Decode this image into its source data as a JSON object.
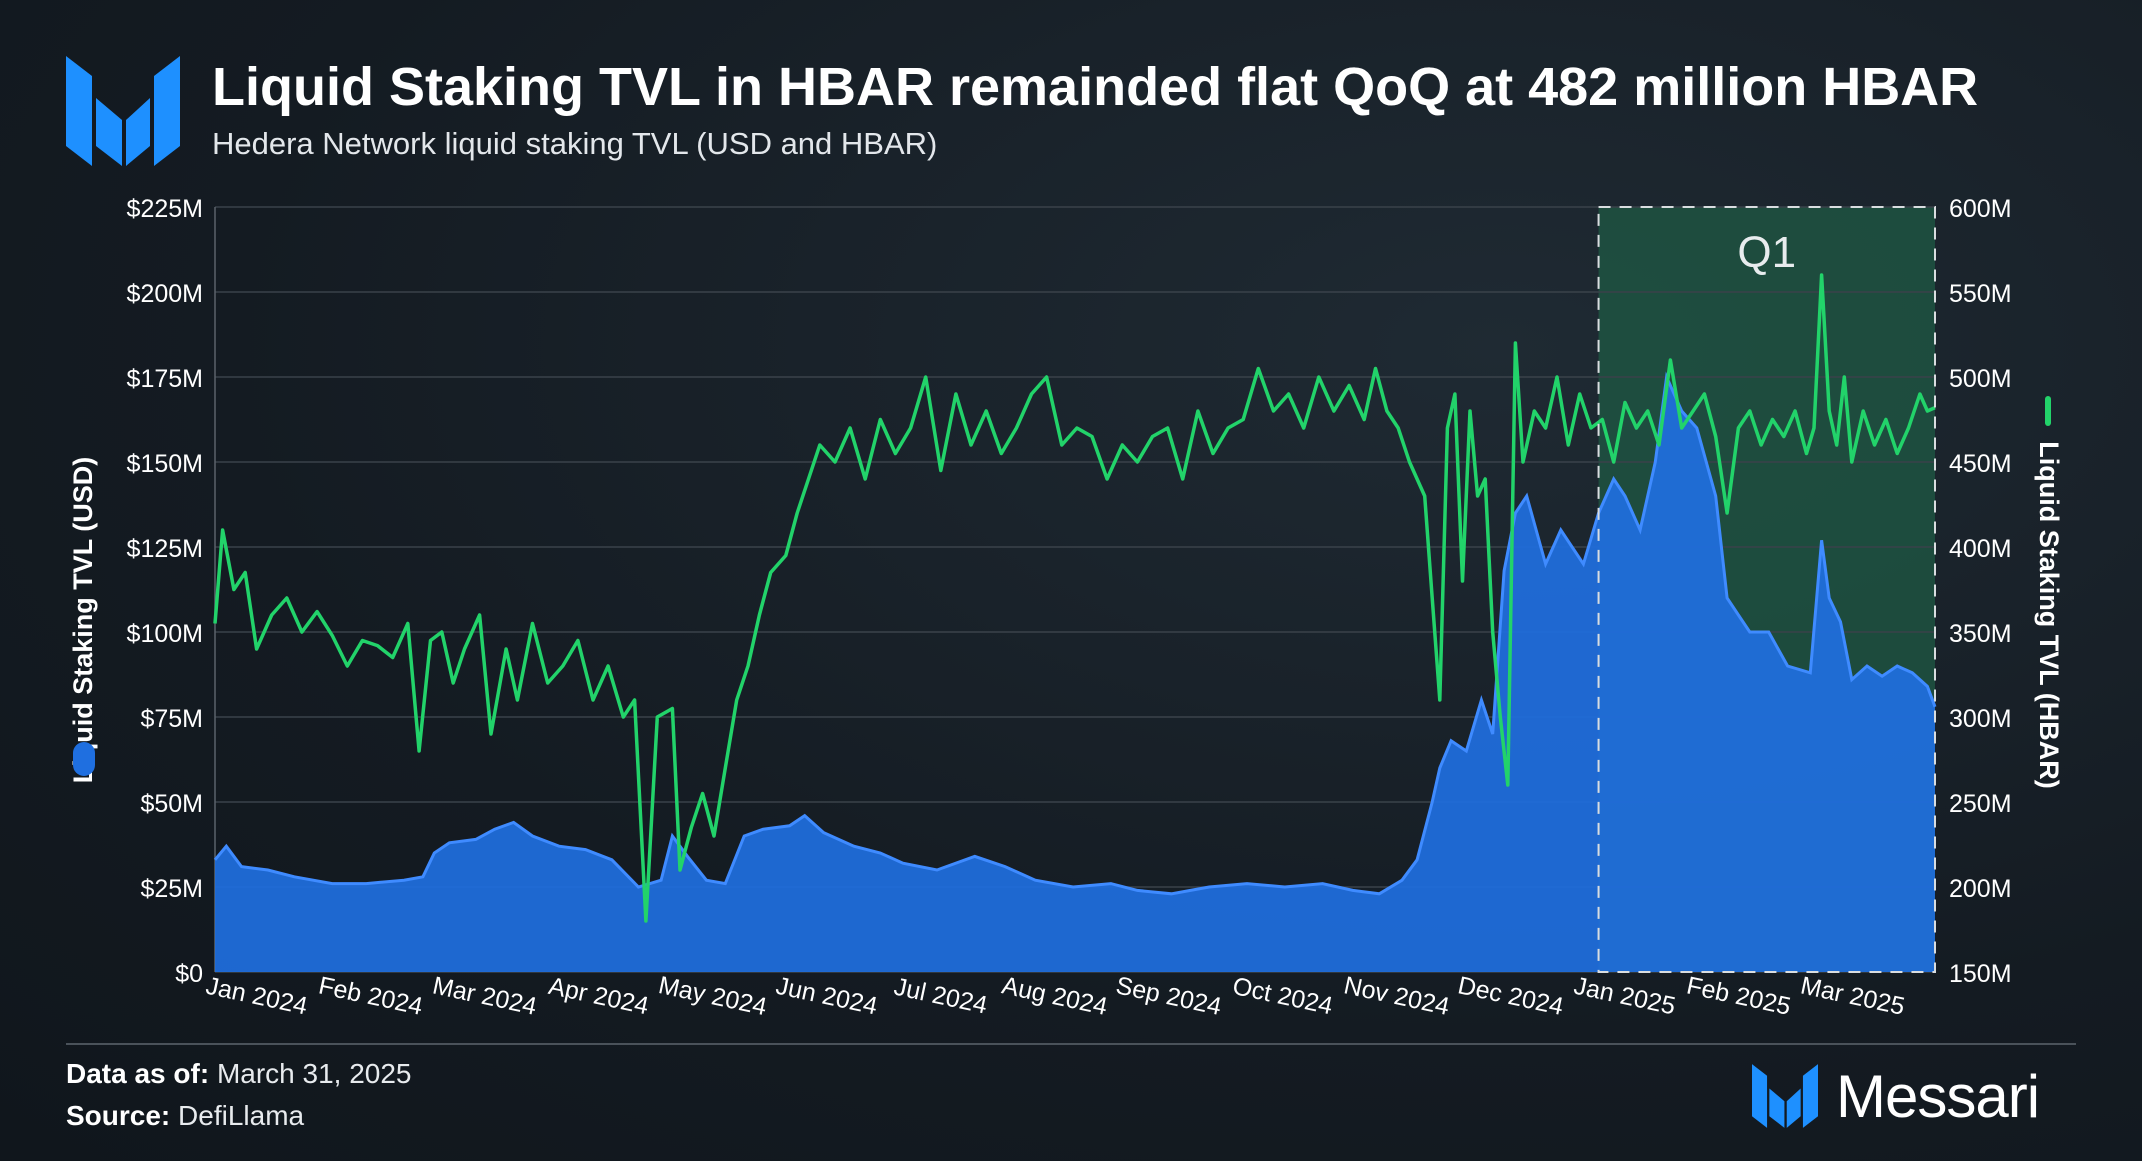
{
  "header": {
    "title": "Liquid Staking TVL in HBAR remainded flat QoQ at 482 million HBAR",
    "subtitle": "Hedera Network liquid staking TVL (USD and HBAR)"
  },
  "footer": {
    "data_as_of_label": "Data as of:",
    "data_as_of_value": "March 31, 2025",
    "source_label": "Source:",
    "source_value": "DefiLlama",
    "brand": "Messari"
  },
  "colors": {
    "usd_area": "#1f6fe0",
    "hbar_line": "#22d36a",
    "highlight_fill": "#1f5a44",
    "grid": "#3a424a",
    "brand_blue": "#1e90ff"
  },
  "chart_data": {
    "type": "area+line",
    "x_start": "2024-01-01",
    "x_end": "2025-03-31",
    "x_tick_labels": [
      "Jan 2024",
      "Feb 2024",
      "Mar 2024",
      "Apr 2024",
      "May 2024",
      "Jun 2024",
      "Jul 2024",
      "Aug 2024",
      "Sep 2024",
      "Oct 2024",
      "Nov 2024",
      "Dec 2024",
      "Jan 2025",
      "Feb 2025",
      "Mar 2025"
    ],
    "left_axis": {
      "label": "Liquid Staking TVL (USD)",
      "range": [
        0,
        225
      ],
      "unit": "M USD",
      "tick_labels": [
        "$0",
        "$25M",
        "$50M",
        "$75M",
        "$100M",
        "$125M",
        "$150M",
        "$175M",
        "$200M",
        "$225M"
      ]
    },
    "right_axis": {
      "label": "Liquid Staking TVL (HBAR)",
      "range": [
        150,
        600
      ],
      "unit": "M HBAR",
      "tick_labels": [
        "150M",
        "200M",
        "250M",
        "300M",
        "350M",
        "400M",
        "450M",
        "500M",
        "550M",
        "600M"
      ]
    },
    "highlight": {
      "label": "Q1",
      "from": "2025-01-01",
      "to": "2025-03-31"
    },
    "series": [
      {
        "name": "Liquid Staking TVL (USD)",
        "axis": "left",
        "type": "area",
        "points": [
          [
            "2024-01-01",
            33
          ],
          [
            "2024-01-04",
            37
          ],
          [
            "2024-01-08",
            31
          ],
          [
            "2024-01-15",
            30
          ],
          [
            "2024-01-22",
            28
          ],
          [
            "2024-02-01",
            26
          ],
          [
            "2024-02-10",
            26
          ],
          [
            "2024-02-20",
            27
          ],
          [
            "2024-02-25",
            28
          ],
          [
            "2024-02-28",
            35
          ],
          [
            "2024-03-03",
            38
          ],
          [
            "2024-03-10",
            39
          ],
          [
            "2024-03-15",
            42
          ],
          [
            "2024-03-20",
            44
          ],
          [
            "2024-03-25",
            40
          ],
          [
            "2024-04-01",
            37
          ],
          [
            "2024-04-08",
            36
          ],
          [
            "2024-04-15",
            33
          ],
          [
            "2024-04-22",
            25
          ],
          [
            "2024-04-28",
            27
          ],
          [
            "2024-05-01",
            40
          ],
          [
            "2024-05-05",
            34
          ],
          [
            "2024-05-10",
            27
          ],
          [
            "2024-05-15",
            26
          ],
          [
            "2024-05-20",
            40
          ],
          [
            "2024-05-25",
            42
          ],
          [
            "2024-06-01",
            43
          ],
          [
            "2024-06-05",
            46
          ],
          [
            "2024-06-10",
            41
          ],
          [
            "2024-06-18",
            37
          ],
          [
            "2024-06-25",
            35
          ],
          [
            "2024-07-01",
            32
          ],
          [
            "2024-07-10",
            30
          ],
          [
            "2024-07-20",
            34
          ],
          [
            "2024-07-28",
            31
          ],
          [
            "2024-08-05",
            27
          ],
          [
            "2024-08-15",
            25
          ],
          [
            "2024-08-25",
            26
          ],
          [
            "2024-09-01",
            24
          ],
          [
            "2024-09-10",
            23
          ],
          [
            "2024-09-20",
            25
          ],
          [
            "2024-09-30",
            26
          ],
          [
            "2024-10-10",
            25
          ],
          [
            "2024-10-20",
            26
          ],
          [
            "2024-10-28",
            24
          ],
          [
            "2024-11-04",
            23
          ],
          [
            "2024-11-10",
            27
          ],
          [
            "2024-11-14",
            33
          ],
          [
            "2024-11-18",
            50
          ],
          [
            "2024-11-20",
            60
          ],
          [
            "2024-11-23",
            68
          ],
          [
            "2024-11-27",
            65
          ],
          [
            "2024-12-01",
            80
          ],
          [
            "2024-12-04",
            70
          ],
          [
            "2024-12-07",
            118
          ],
          [
            "2024-12-10",
            135
          ],
          [
            "2024-12-13",
            140
          ],
          [
            "2024-12-18",
            120
          ],
          [
            "2024-12-22",
            130
          ],
          [
            "2024-12-28",
            120
          ],
          [
            "2025-01-01",
            135
          ],
          [
            "2025-01-05",
            145
          ],
          [
            "2025-01-08",
            140
          ],
          [
            "2025-01-12",
            130
          ],
          [
            "2025-01-16",
            150
          ],
          [
            "2025-01-19",
            175
          ],
          [
            "2025-01-23",
            165
          ],
          [
            "2025-01-27",
            160
          ],
          [
            "2025-02-01",
            140
          ],
          [
            "2025-02-04",
            110
          ],
          [
            "2025-02-07",
            105
          ],
          [
            "2025-02-10",
            100
          ],
          [
            "2025-02-15",
            100
          ],
          [
            "2025-02-20",
            90
          ],
          [
            "2025-02-26",
            88
          ],
          [
            "2025-03-01",
            127
          ],
          [
            "2025-03-03",
            110
          ],
          [
            "2025-03-06",
            103
          ],
          [
            "2025-03-09",
            86
          ],
          [
            "2025-03-13",
            90
          ],
          [
            "2025-03-17",
            87
          ],
          [
            "2025-03-21",
            90
          ],
          [
            "2025-03-25",
            88
          ],
          [
            "2025-03-29",
            84
          ],
          [
            "2025-03-31",
            78
          ]
        ]
      },
      {
        "name": "Liquid Staking TVL (HBAR)",
        "axis": "right",
        "type": "line",
        "points": [
          [
            "2024-01-01",
            355
          ],
          [
            "2024-01-03",
            410
          ],
          [
            "2024-01-06",
            375
          ],
          [
            "2024-01-09",
            385
          ],
          [
            "2024-01-12",
            340
          ],
          [
            "2024-01-16",
            360
          ],
          [
            "2024-01-20",
            370
          ],
          [
            "2024-01-24",
            350
          ],
          [
            "2024-01-28",
            362
          ],
          [
            "2024-02-01",
            348
          ],
          [
            "2024-02-05",
            330
          ],
          [
            "2024-02-09",
            345
          ],
          [
            "2024-02-13",
            342
          ],
          [
            "2024-02-17",
            335
          ],
          [
            "2024-02-21",
            355
          ],
          [
            "2024-02-24",
            280
          ],
          [
            "2024-02-27",
            345
          ],
          [
            "2024-03-01",
            350
          ],
          [
            "2024-03-04",
            320
          ],
          [
            "2024-03-07",
            340
          ],
          [
            "2024-03-11",
            360
          ],
          [
            "2024-03-14",
            290
          ],
          [
            "2024-03-18",
            340
          ],
          [
            "2024-03-21",
            310
          ],
          [
            "2024-03-25",
            355
          ],
          [
            "2024-03-29",
            320
          ],
          [
            "2024-04-02",
            330
          ],
          [
            "2024-04-06",
            345
          ],
          [
            "2024-04-10",
            310
          ],
          [
            "2024-04-14",
            330
          ],
          [
            "2024-04-18",
            300
          ],
          [
            "2024-04-21",
            310
          ],
          [
            "2024-04-24",
            180
          ],
          [
            "2024-04-27",
            300
          ],
          [
            "2024-05-01",
            305
          ],
          [
            "2024-05-03",
            210
          ],
          [
            "2024-05-06",
            235
          ],
          [
            "2024-05-09",
            255
          ],
          [
            "2024-05-12",
            230
          ],
          [
            "2024-05-15",
            270
          ],
          [
            "2024-05-18",
            310
          ],
          [
            "2024-05-21",
            330
          ],
          [
            "2024-05-24",
            360
          ],
          [
            "2024-05-27",
            385
          ],
          [
            "2024-05-31",
            395
          ],
          [
            "2024-06-03",
            420
          ],
          [
            "2024-06-06",
            440
          ],
          [
            "2024-06-09",
            460
          ],
          [
            "2024-06-13",
            450
          ],
          [
            "2024-06-17",
            470
          ],
          [
            "2024-06-21",
            440
          ],
          [
            "2024-06-25",
            475
          ],
          [
            "2024-06-29",
            455
          ],
          [
            "2024-07-03",
            470
          ],
          [
            "2024-07-07",
            500
          ],
          [
            "2024-07-11",
            445
          ],
          [
            "2024-07-15",
            490
          ],
          [
            "2024-07-19",
            460
          ],
          [
            "2024-07-23",
            480
          ],
          [
            "2024-07-27",
            455
          ],
          [
            "2024-07-31",
            470
          ],
          [
            "2024-08-04",
            490
          ],
          [
            "2024-08-08",
            500
          ],
          [
            "2024-08-12",
            460
          ],
          [
            "2024-08-16",
            470
          ],
          [
            "2024-08-20",
            465
          ],
          [
            "2024-08-24",
            440
          ],
          [
            "2024-08-28",
            460
          ],
          [
            "2024-09-01",
            450
          ],
          [
            "2024-09-05",
            465
          ],
          [
            "2024-09-09",
            470
          ],
          [
            "2024-09-13",
            440
          ],
          [
            "2024-09-17",
            480
          ],
          [
            "2024-09-21",
            455
          ],
          [
            "2024-09-25",
            470
          ],
          [
            "2024-09-29",
            475
          ],
          [
            "2024-10-03",
            505
          ],
          [
            "2024-10-07",
            480
          ],
          [
            "2024-10-11",
            490
          ],
          [
            "2024-10-15",
            470
          ],
          [
            "2024-10-19",
            500
          ],
          [
            "2024-10-23",
            480
          ],
          [
            "2024-10-27",
            495
          ],
          [
            "2024-10-31",
            475
          ],
          [
            "2024-11-03",
            505
          ],
          [
            "2024-11-06",
            480
          ],
          [
            "2024-11-09",
            470
          ],
          [
            "2024-11-12",
            450
          ],
          [
            "2024-11-14",
            440
          ],
          [
            "2024-11-16",
            430
          ],
          [
            "2024-11-18",
            370
          ],
          [
            "2024-11-20",
            310
          ],
          [
            "2024-11-22",
            470
          ],
          [
            "2024-11-24",
            490
          ],
          [
            "2024-11-26",
            380
          ],
          [
            "2024-11-28",
            480
          ],
          [
            "2024-11-30",
            430
          ],
          [
            "2024-12-02",
            440
          ],
          [
            "2024-12-04",
            350
          ],
          [
            "2024-12-06",
            300
          ],
          [
            "2024-12-08",
            260
          ],
          [
            "2024-12-10",
            520
          ],
          [
            "2024-12-12",
            450
          ],
          [
            "2024-12-15",
            480
          ],
          [
            "2024-12-18",
            470
          ],
          [
            "2024-12-21",
            500
          ],
          [
            "2024-12-24",
            460
          ],
          [
            "2024-12-27",
            490
          ],
          [
            "2024-12-30",
            470
          ],
          [
            "2025-01-02",
            475
          ],
          [
            "2025-01-05",
            450
          ],
          [
            "2025-01-08",
            485
          ],
          [
            "2025-01-11",
            470
          ],
          [
            "2025-01-14",
            480
          ],
          [
            "2025-01-17",
            460
          ],
          [
            "2025-01-20",
            510
          ],
          [
            "2025-01-23",
            470
          ],
          [
            "2025-01-26",
            480
          ],
          [
            "2025-01-29",
            490
          ],
          [
            "2025-02-01",
            465
          ],
          [
            "2025-02-04",
            420
          ],
          [
            "2025-02-07",
            470
          ],
          [
            "2025-02-10",
            480
          ],
          [
            "2025-02-13",
            460
          ],
          [
            "2025-02-16",
            475
          ],
          [
            "2025-02-19",
            465
          ],
          [
            "2025-02-22",
            480
          ],
          [
            "2025-02-25",
            455
          ],
          [
            "2025-02-27",
            470
          ],
          [
            "2025-03-01",
            560
          ],
          [
            "2025-03-03",
            480
          ],
          [
            "2025-03-05",
            460
          ],
          [
            "2025-03-07",
            500
          ],
          [
            "2025-03-09",
            450
          ],
          [
            "2025-03-12",
            480
          ],
          [
            "2025-03-15",
            460
          ],
          [
            "2025-03-18",
            475
          ],
          [
            "2025-03-21",
            455
          ],
          [
            "2025-03-24",
            470
          ],
          [
            "2025-03-27",
            490
          ],
          [
            "2025-03-29",
            480
          ],
          [
            "2025-03-31",
            482
          ]
        ]
      }
    ]
  }
}
